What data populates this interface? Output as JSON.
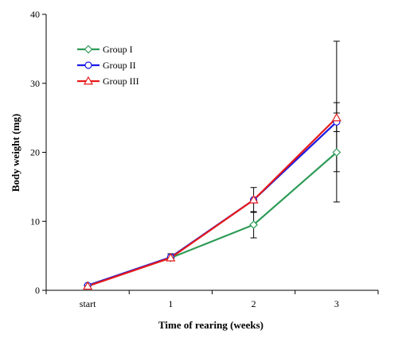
{
  "chart_data": {
    "type": "line",
    "title": "",
    "xlabel": "Time of rearing (weeks)",
    "ylabel": "Body weight (mg)",
    "categories": [
      "start",
      "1",
      "2",
      "3"
    ],
    "ylim": [
      0,
      40
    ],
    "yticks": [
      "0",
      "10",
      "20",
      "30",
      "40"
    ],
    "grid": false,
    "legend_position": "top-left",
    "series": [
      {
        "name": "Group I",
        "color": "#2e9b57",
        "marker": "diamond",
        "values": [
          0.7,
          4.7,
          9.5,
          20.0
        ],
        "error_low": [
          null,
          null,
          7.6,
          12.8
        ],
        "error_high": [
          null,
          null,
          11.3,
          27.2
        ]
      },
      {
        "name": "Group II",
        "color": "#1a1ae6",
        "marker": "circle",
        "values": [
          0.7,
          4.8,
          13.1,
          24.4
        ],
        "error_low": [
          null,
          4.4,
          11.4,
          17.2
        ],
        "error_high": [
          null,
          5.3,
          14.9,
          36.1
        ]
      },
      {
        "name": "Group III",
        "color": "#e61a1a",
        "marker": "triangle",
        "values": [
          0.6,
          4.7,
          13.1,
          25.0
        ],
        "error_low": [
          null,
          null,
          null,
          23.0
        ],
        "error_high": [
          null,
          null,
          null,
          25.7
        ]
      }
    ]
  }
}
